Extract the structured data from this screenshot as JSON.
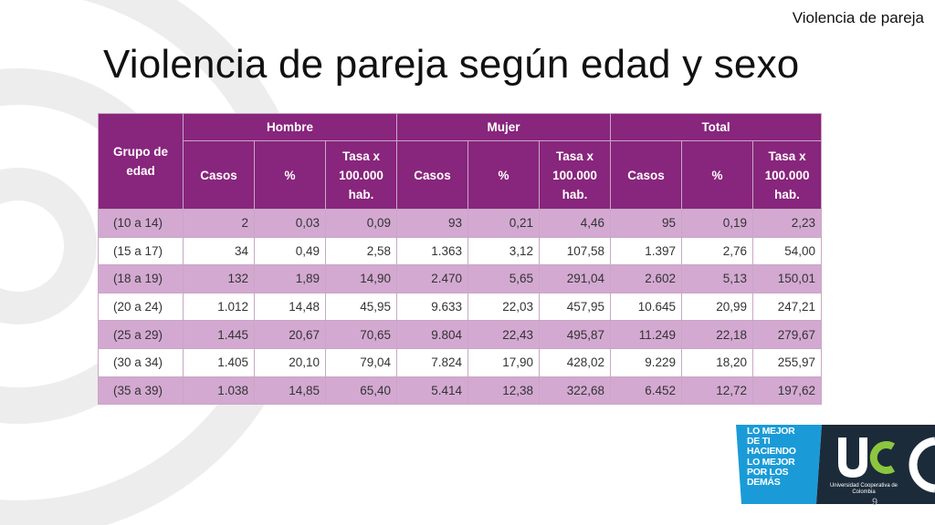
{
  "header": {
    "section_label": "Violencia de pareja",
    "title": "Violencia de pareja según edad y sexo"
  },
  "table": {
    "group_header": "Grupo de edad",
    "column_groups": [
      "Hombre",
      "Mujer",
      "Total"
    ],
    "sub_columns": [
      "Casos",
      "%",
      "Tasa x 100.000 hab."
    ],
    "rows": [
      [
        "(10 a 14)",
        "2",
        "0,03",
        "0,09",
        "93",
        "0,21",
        "4,46",
        "95",
        "0,19",
        "2,23"
      ],
      [
        "(15 a 17)",
        "34",
        "0,49",
        "2,58",
        "1.363",
        "3,12",
        "107,58",
        "1.397",
        "2,76",
        "54,00"
      ],
      [
        "(18 a 19)",
        "132",
        "1,89",
        "14,90",
        "2.470",
        "5,65",
        "291,04",
        "2.602",
        "5,13",
        "150,01"
      ],
      [
        "(20 a 24)",
        "1.012",
        "14,48",
        "45,95",
        "9.633",
        "22,03",
        "457,95",
        "10.645",
        "20,99",
        "247,21"
      ],
      [
        "(25 a 29)",
        "1.445",
        "20,67",
        "70,65",
        "9.804",
        "22,43",
        "495,87",
        "11.249",
        "22,18",
        "279,67"
      ],
      [
        "(30 a 34)",
        "1.405",
        "20,10",
        "79,04",
        "7.824",
        "17,90",
        "428,02",
        "9.229",
        "18,20",
        "255,97"
      ],
      [
        "(35 a 39)",
        "1.038",
        "14,85",
        "65,40",
        "5.414",
        "12,38",
        "322,68",
        "6.452",
        "12,72",
        "197,62"
      ]
    ]
  },
  "footer": {
    "slogan_lines": [
      "LO MEJOR",
      "DE TI",
      "HACIENDO",
      "LO MEJOR",
      "POR LOS",
      "DEMÁS"
    ],
    "university": "Universidad Cooperativa de Colombia",
    "page_number": "9"
  },
  "colors": {
    "table_header": "#88257c",
    "table_row_alt": "#d3a9d1",
    "logo_blue": "#1a9bd7",
    "logo_dark": "#1c2b39",
    "logo_green": "#8cc63f"
  }
}
